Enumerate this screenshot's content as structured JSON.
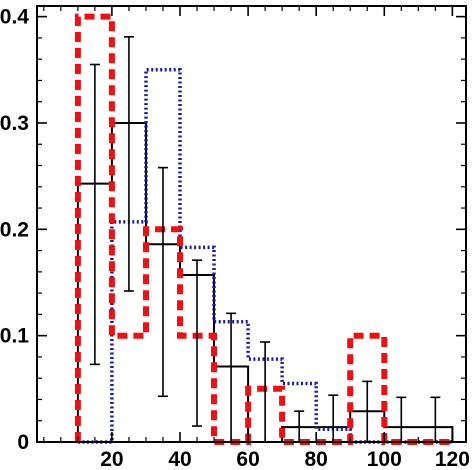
{
  "chart_data": {
    "type": "histogram",
    "xlim": [
      -2,
      124
    ],
    "ylim": [
      0,
      0.41
    ],
    "x_ticks": [
      20,
      40,
      60,
      80,
      100,
      120
    ],
    "x_tick_labels": [
      "20",
      "40",
      "60",
      "80",
      "100",
      "120"
    ],
    "y_ticks": [
      0,
      0.1,
      0.2,
      0.3,
      0.4
    ],
    "y_tick_labels": [
      "0",
      "0.1",
      "0.2",
      "0.3",
      "0.4"
    ],
    "bin_edges": [
      10,
      20,
      30,
      40,
      50,
      60,
      70,
      80,
      90,
      100,
      110,
      120
    ],
    "series": [
      {
        "style": "solid",
        "color": "#000000",
        "values": [
          0.243,
          0.3,
          0.186,
          0.157,
          0.071,
          0.0,
          0.014,
          0.014,
          0.029,
          0.014,
          0.014
        ],
        "error_upper": [
          0.355,
          0.381,
          0.258,
          0.171,
          0.121,
          0.094,
          0.029,
          0.044,
          0.057,
          0.042,
          0.042
        ],
        "error_lower": [
          0.073,
          0.142,
          0.043,
          0.015,
          0.0,
          0.0,
          0.0,
          0.0,
          0.0,
          0.0,
          0.0
        ]
      },
      {
        "style": "dotted",
        "color": "#1a1aa6",
        "values": [
          0.0,
          0.207,
          0.35,
          0.183,
          0.113,
          0.078,
          0.055,
          0.012,
          0.0,
          0.0,
          0.0
        ]
      },
      {
        "style": "dashed",
        "color": "#ee1111",
        "values": [
          0.4,
          0.1,
          0.2,
          0.1,
          0.0,
          0.05,
          0.0,
          0.0,
          0.1,
          0.0,
          0.0
        ]
      }
    ]
  }
}
